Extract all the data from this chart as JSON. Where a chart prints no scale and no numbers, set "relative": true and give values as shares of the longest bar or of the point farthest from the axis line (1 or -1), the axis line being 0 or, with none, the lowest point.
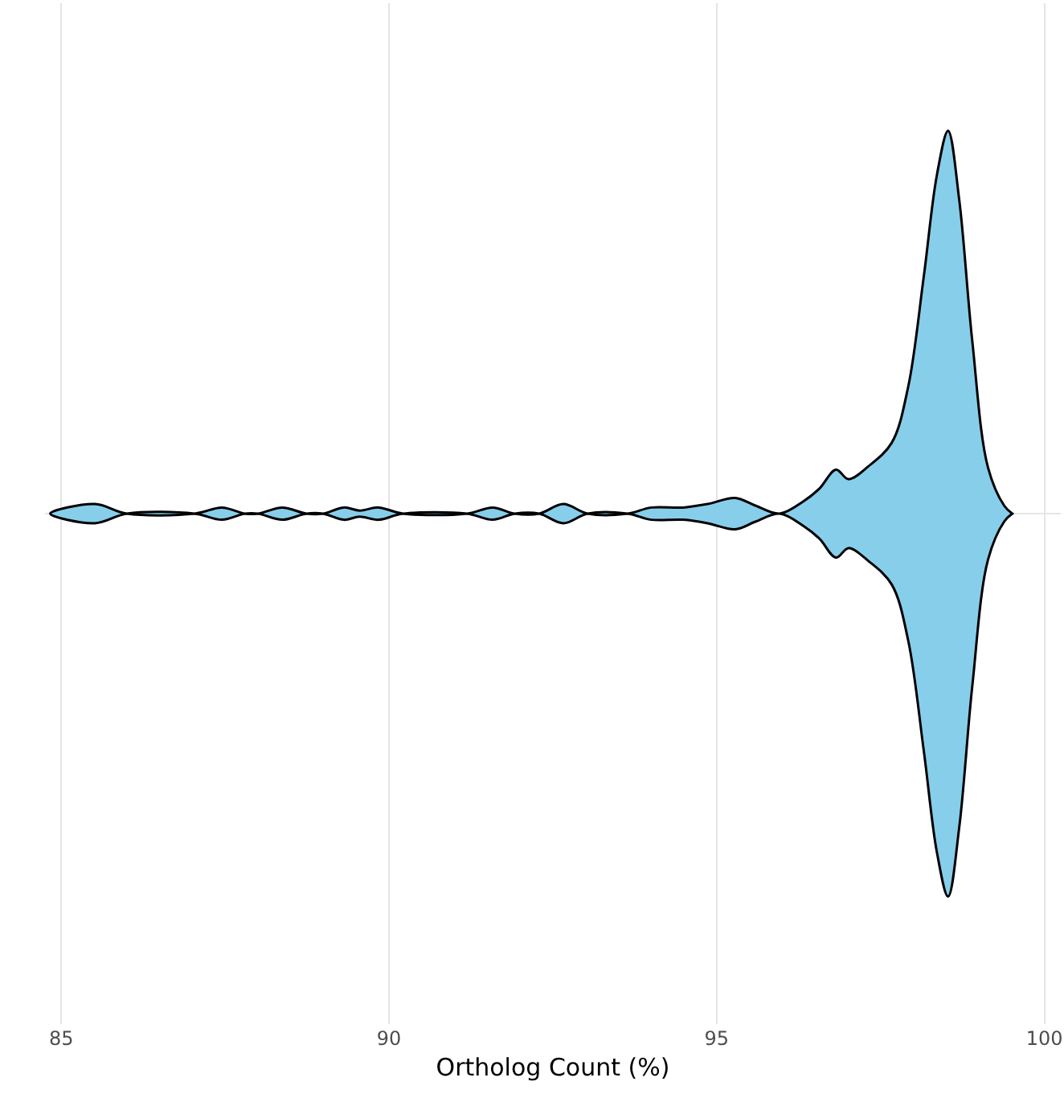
{
  "chart_data": {
    "type": "area",
    "relative": true,
    "xlabel": "Ortholog Count (%)",
    "x": [
      84.83,
      85.51,
      86.0,
      87.03,
      87.45,
      87.8,
      88.0,
      88.37,
      88.74,
      88.99,
      89.31,
      89.55,
      89.84,
      90.21,
      91.19,
      91.58,
      91.92,
      92.29,
      92.66,
      93.03,
      93.64,
      94.0,
      94.49,
      94.86,
      95.28,
      95.59,
      95.96,
      96.33,
      96.57,
      96.82,
      97.01,
      97.31,
      97.67,
      97.92,
      98.16,
      98.36,
      98.53,
      98.7,
      98.9,
      99.14,
      99.39,
      99.51
    ],
    "series": [
      {
        "color": "#87ceeb",
        "values": [
          0,
          0.025,
          0,
          0,
          0.016,
          0,
          0,
          0.016,
          0,
          0,
          0.016,
          0.008,
          0.016,
          0,
          0,
          0.016,
          0,
          0,
          0.025,
          0,
          0,
          0.016,
          0.016,
          0.025,
          0.041,
          0.021,
          0,
          0.033,
          0.066,
          0.115,
          0.09,
          0.123,
          0.185,
          0.33,
          0.62,
          0.885,
          1,
          0.82,
          0.45,
          0.12,
          0.02,
          0
        ]
      }
    ],
    "xlim": [
      84.75,
      100.25
    ],
    "xticks": [
      85,
      90,
      95,
      100
    ],
    "grid": "x"
  }
}
